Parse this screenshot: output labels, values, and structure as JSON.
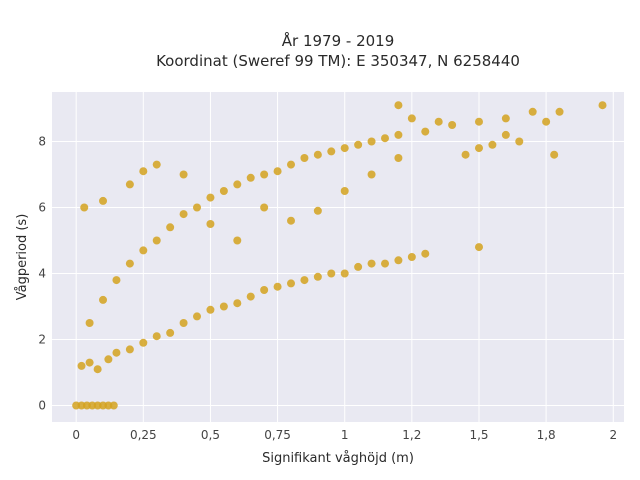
{
  "chart_data": {
    "type": "scatter",
    "title_lines": [
      "År 1979 - 2019",
      "Koordinat (Sweref 99 TM): E 350347, N 6258440"
    ],
    "xlabel": "Signifikant våghöjd (m)",
    "ylabel": "Vågperiod (s)",
    "xlim": [
      -0.09,
      2.04
    ],
    "ylim": [
      -0.5,
      9.5
    ],
    "x_ticks": [
      0,
      0.25,
      0.5,
      0.75,
      1,
      1.25,
      1.5,
      1.75,
      2
    ],
    "x_tick_labels": [
      "0",
      "0,25",
      "0,5",
      "0,75",
      "1",
      "1,2",
      "1,5",
      "1,8",
      "2"
    ],
    "y_ticks": [
      0,
      2,
      4,
      6,
      8
    ],
    "y_tick_labels": [
      "0",
      "2",
      "4",
      "6",
      "8"
    ],
    "grid": true,
    "legend": "none",
    "colors": {
      "points": "#d4a21f",
      "plot_bg": "#e9e9f2",
      "grid": "#ffffff",
      "text": "#2a2a2a"
    },
    "series": [
      {
        "points": [
          [
            0.0,
            0.0
          ],
          [
            0.02,
            0.0
          ],
          [
            0.04,
            0.0
          ],
          [
            0.06,
            0.0
          ],
          [
            0.08,
            0.0
          ],
          [
            0.1,
            0.0
          ],
          [
            0.12,
            0.0
          ],
          [
            0.14,
            0.0
          ],
          [
            0.02,
            1.2
          ],
          [
            0.05,
            1.3
          ],
          [
            0.08,
            1.1
          ],
          [
            0.12,
            1.4
          ],
          [
            0.15,
            1.6
          ],
          [
            0.2,
            1.7
          ],
          [
            0.25,
            1.9
          ],
          [
            0.3,
            2.1
          ],
          [
            0.35,
            2.2
          ],
          [
            0.4,
            2.5
          ],
          [
            0.45,
            2.7
          ],
          [
            0.5,
            2.9
          ],
          [
            0.55,
            3.0
          ],
          [
            0.6,
            3.1
          ],
          [
            0.65,
            3.3
          ],
          [
            0.7,
            3.5
          ],
          [
            0.75,
            3.6
          ],
          [
            0.8,
            3.7
          ],
          [
            0.85,
            3.8
          ],
          [
            0.9,
            3.9
          ],
          [
            0.95,
            4.0
          ],
          [
            1.0,
            4.0
          ],
          [
            1.05,
            4.2
          ],
          [
            1.1,
            4.3
          ],
          [
            1.15,
            4.3
          ],
          [
            1.2,
            4.4
          ],
          [
            1.25,
            4.5
          ],
          [
            1.3,
            4.6
          ],
          [
            1.5,
            4.8
          ],
          [
            0.05,
            2.5
          ],
          [
            0.1,
            3.2
          ],
          [
            0.15,
            3.8
          ],
          [
            0.2,
            4.3
          ],
          [
            0.25,
            4.7
          ],
          [
            0.3,
            5.0
          ],
          [
            0.35,
            5.4
          ],
          [
            0.4,
            5.8
          ],
          [
            0.45,
            6.0
          ],
          [
            0.5,
            6.3
          ],
          [
            0.55,
            6.5
          ],
          [
            0.6,
            6.7
          ],
          [
            0.65,
            6.9
          ],
          [
            0.7,
            7.0
          ],
          [
            0.75,
            7.1
          ],
          [
            0.8,
            7.3
          ],
          [
            0.85,
            7.5
          ],
          [
            0.9,
            7.6
          ],
          [
            0.95,
            7.7
          ],
          [
            1.0,
            7.8
          ],
          [
            1.05,
            7.9
          ],
          [
            1.1,
            8.0
          ],
          [
            1.15,
            8.1
          ],
          [
            1.2,
            8.2
          ],
          [
            1.3,
            8.3
          ],
          [
            1.4,
            8.5
          ],
          [
            1.5,
            8.6
          ],
          [
            1.6,
            8.7
          ],
          [
            1.7,
            8.9
          ],
          [
            1.8,
            8.9
          ],
          [
            1.96,
            9.1
          ],
          [
            0.03,
            6.0
          ],
          [
            0.1,
            6.2
          ],
          [
            0.2,
            6.7
          ],
          [
            0.25,
            7.1
          ],
          [
            0.3,
            7.3
          ],
          [
            0.4,
            7.0
          ],
          [
            0.5,
            5.5
          ],
          [
            0.6,
            5.0
          ],
          [
            0.7,
            6.0
          ],
          [
            0.8,
            5.6
          ],
          [
            0.9,
            5.9
          ],
          [
            1.0,
            6.5
          ],
          [
            1.1,
            7.0
          ],
          [
            1.2,
            7.5
          ],
          [
            1.25,
            8.7
          ],
          [
            1.35,
            8.6
          ],
          [
            1.45,
            7.6
          ],
          [
            1.55,
            7.9
          ],
          [
            1.65,
            8.0
          ],
          [
            1.75,
            8.6
          ],
          [
            1.78,
            7.6
          ],
          [
            1.5,
            7.8
          ],
          [
            1.6,
            8.2
          ],
          [
            1.2,
            9.1
          ]
        ]
      }
    ]
  }
}
